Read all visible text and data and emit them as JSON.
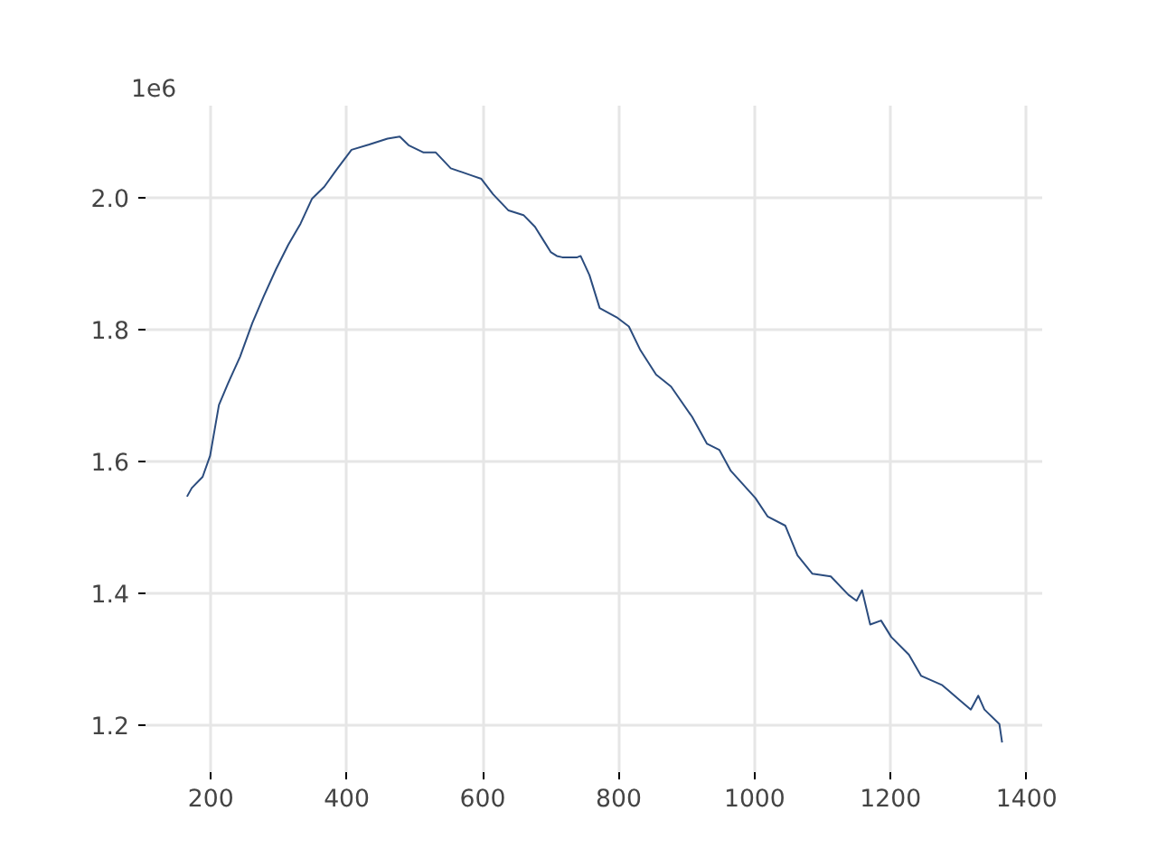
{
  "chart_data": {
    "type": "line",
    "annotations": [
      "1e6"
    ],
    "x": [
      165,
      172,
      188,
      199,
      212,
      225,
      243,
      261,
      278,
      296,
      314,
      332,
      349,
      367,
      385,
      407,
      433,
      460,
      478,
      491,
      513,
      531,
      553,
      584,
      598,
      615,
      638,
      660,
      677,
      691,
      700,
      709,
      717,
      739,
      744,
      757,
      772,
      797,
      815,
      832,
      855,
      877,
      908,
      930,
      948,
      965,
      1001,
      1019,
      1045,
      1063,
      1085,
      1112,
      1138,
      1150,
      1158,
      1170,
      1186,
      1201,
      1227,
      1245,
      1276,
      1302,
      1318,
      1329,
      1338,
      1360,
      1364
    ],
    "series": [
      {
        "color": "#2b4c7e",
        "values": [
          1.547,
          1.56,
          1.577,
          1.609,
          1.686,
          1.718,
          1.759,
          1.81,
          1.851,
          1.892,
          1.929,
          1.961,
          1.999,
          2.017,
          2.043,
          2.073,
          2.081,
          2.09,
          2.093,
          2.08,
          2.069,
          2.069,
          2.045,
          2.034,
          2.029,
          2.006,
          1.981,
          1.974,
          1.956,
          1.933,
          1.918,
          1.912,
          1.91,
          1.91,
          1.912,
          1.883,
          1.833,
          1.819,
          1.805,
          1.769,
          1.732,
          1.714,
          1.668,
          1.627,
          1.618,
          1.586,
          1.545,
          1.517,
          1.503,
          1.458,
          1.43,
          1.426,
          1.398,
          1.389,
          1.405,
          1.353,
          1.359,
          1.334,
          1.307,
          1.275,
          1.261,
          1.238,
          1.224,
          1.245,
          1.224,
          1.202,
          1.174
        ]
      }
    ],
    "xlim": [
      104,
      1423
    ],
    "xticks": [
      200,
      400,
      600,
      800,
      1000,
      1200,
      1400
    ],
    "ylim": [
      1.129,
      2.14
    ],
    "yticks": [
      1.2,
      1.4,
      1.6,
      1.8,
      {
        "value": 2,
        "label": "2.0"
      }
    ],
    "grid": true,
    "line_style": "solid"
  }
}
